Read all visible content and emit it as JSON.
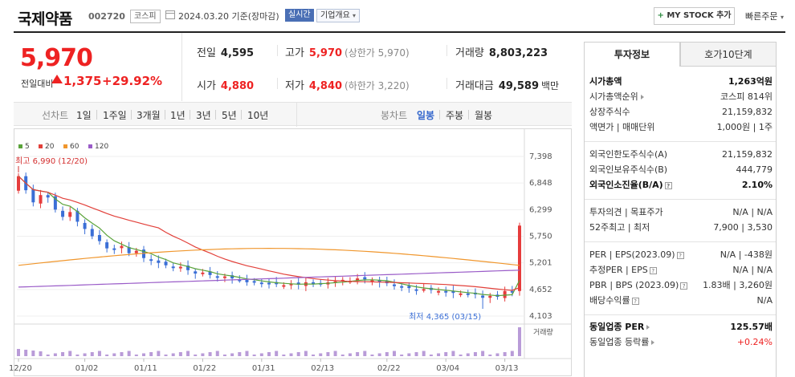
{
  "header": {
    "name": "국제약품",
    "code": "002720",
    "market": "코스피",
    "date_text": "2024.03.20 기준(장마감)",
    "realtime": "실시간",
    "company_overview": "기업개요",
    "my_stock_button": "MY STOCK 추가",
    "quick_order": "빠른주문"
  },
  "price": {
    "current": "5,970",
    "change_label": "전일대비",
    "change": "1,375",
    "change_rate": "+29.92%"
  },
  "stats": {
    "prev_label": "전일",
    "prev_value": "4,595",
    "open_label": "시가",
    "open_value": "4,880",
    "high_label": "고가",
    "high_value": "5,970",
    "high_sub": "(상한가 5,970)",
    "low_label": "저가",
    "low_value": "4,840",
    "low_sub": "(하한가 3,220)",
    "volume_label": "거래량",
    "volume_value": "8,803,223",
    "amount_label": "거래대금",
    "amount_value": "49,589",
    "amount_unit": "백만"
  },
  "period_bar": {
    "line_chart_label": "선차트",
    "periods": [
      "1일",
      "1주일",
      "3개월",
      "1년",
      "3년",
      "5년",
      "10년"
    ],
    "candle_label": "봉차트",
    "candle_periods": [
      "일봉",
      "주봉",
      "월봉"
    ],
    "selected_candle": "일봉"
  },
  "chart_data": {
    "type": "candlestick",
    "legend": [
      {
        "name": "5",
        "color": "#5aa33a"
      },
      {
        "name": "20",
        "color": "#e2403a"
      },
      {
        "name": "60",
        "color": "#f0962c"
      },
      {
        "name": "120",
        "color": "#9a5cc8"
      }
    ],
    "y_ticks": [
      "7,398",
      "6,848",
      "6,299",
      "5,750",
      "5,201",
      "4,652",
      "4,103"
    ],
    "ylim": [
      4103,
      7398
    ],
    "x_ticks": [
      "12/20",
      "01/02",
      "01/11",
      "01/22",
      "01/31",
      "02/13",
      "02/22",
      "03/04",
      "03/13"
    ],
    "high_annotation": "최고 6,990 (12/20)",
    "low_annotation": "최저 4,365 (03/15)",
    "volume_label": "거래량",
    "closes": [
      6990,
      6700,
      6450,
      6600,
      6550,
      6300,
      6150,
      6250,
      6050,
      5900,
      5750,
      5650,
      5500,
      5480,
      5550,
      5400,
      5450,
      5300,
      5250,
      5200,
      5150,
      5100,
      5120,
      5050,
      4980,
      5000,
      4950,
      4900,
      4920,
      4880,
      4850,
      4800,
      4820,
      4790,
      4780,
      4760,
      4740,
      4770,
      4750,
      4800,
      4760,
      4780,
      4800,
      4820,
      4850,
      4830,
      4880,
      4860,
      4840,
      4800,
      4780,
      4720,
      4700,
      4680,
      4650,
      4660,
      4640,
      4620,
      4600,
      4580,
      4570,
      4560,
      4550,
      4480,
      4520,
      4500,
      4620,
      4595,
      5970
    ]
  },
  "right_panel": {
    "tab_invest": "투자정보",
    "tab_quote": "호가10단계",
    "rows": [
      {
        "label": "시가총액",
        "value": "1,263억원"
      },
      {
        "label": "시가총액순위",
        "value": "코스피 814위"
      },
      {
        "label": "상장주식수",
        "value": "21,159,832"
      },
      {
        "label": "액면가 | 매매단위",
        "value": "1,000원 | 1주"
      },
      {
        "label": "외국인한도주식수(A)",
        "value": "21,159,832"
      },
      {
        "label": "외국인보유주식수(B)",
        "value": "444,779"
      },
      {
        "label": "외국인소진율(B/A)",
        "value": "2.10%"
      },
      {
        "label": "투자의견 | 목표주가",
        "value": "N/A | N/A"
      },
      {
        "label": "52주최고 | 최저",
        "value": "7,900 | 3,530"
      },
      {
        "label": "PER | EPS(2023.09)",
        "value": "N/A | -438원"
      },
      {
        "label": "추정PER | EPS",
        "value": "N/A | N/A"
      },
      {
        "label": "PBR | BPS (2023.09)",
        "value": "1.83배 | 3,260원"
      },
      {
        "label": "배당수익률",
        "value": "N/A"
      },
      {
        "label": "동일업종 PER",
        "value": "125.57배"
      },
      {
        "label": "동일업종 등락률",
        "value": "+0.24%"
      }
    ]
  }
}
